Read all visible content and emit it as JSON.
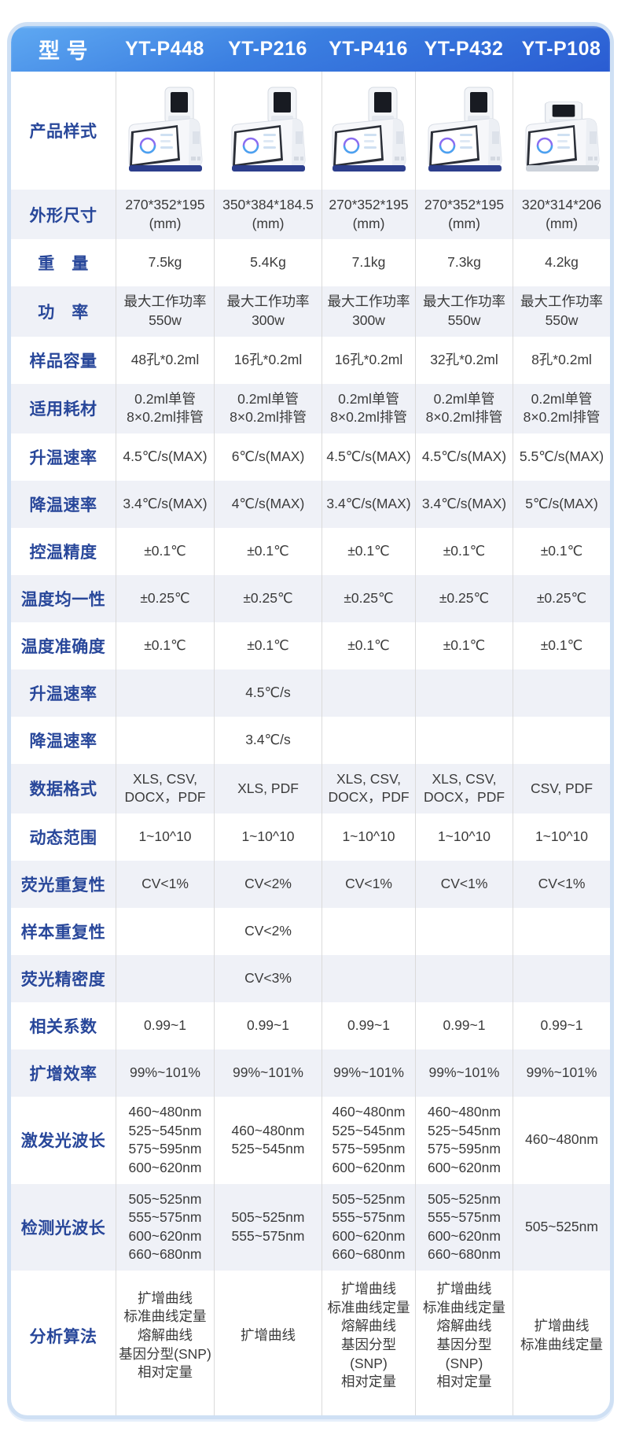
{
  "header": {
    "label": "型 号",
    "models": [
      "YT-P448",
      "YT-P216",
      "YT-P416",
      "YT-P432",
      "YT-P108"
    ]
  },
  "product_row": {
    "label": "产品样式",
    "images": [
      "pcr-thermocycler-photo-yt-p448",
      "pcr-thermocycler-photo-yt-p216",
      "pcr-thermocycler-photo-yt-p416",
      "pcr-thermocycler-photo-yt-p432",
      "pcr-thermocycler-photo-yt-p108"
    ]
  },
  "rows": [
    {
      "label": "外形尺寸",
      "values": [
        "270*352*195\n(mm)",
        "350*384*184.5\n(mm)",
        "270*352*195\n(mm)",
        "270*352*195\n(mm)",
        "320*314*206\n(mm)"
      ]
    },
    {
      "label": "重　量",
      "values": [
        "7.5kg",
        "5.4Kg",
        "7.1kg",
        "7.3kg",
        "4.2kg"
      ]
    },
    {
      "label": "功　率",
      "values": [
        "最大工作功率\n550w",
        "最大工作功率\n300w",
        "最大工作功率\n300w",
        "最大工作功率\n550w",
        "最大工作功率\n550w"
      ]
    },
    {
      "label": "样品容量",
      "values": [
        "48孔*0.2ml",
        "16孔*0.2ml",
        "16孔*0.2ml",
        "32孔*0.2ml",
        "8孔*0.2ml"
      ]
    },
    {
      "label": "适用耗材",
      "values": [
        "0.2ml单管\n8×0.2ml排管",
        "0.2ml单管\n8×0.2ml排管",
        "0.2ml单管\n8×0.2ml排管",
        "0.2ml单管\n8×0.2ml排管",
        "0.2ml单管\n8×0.2ml排管"
      ]
    },
    {
      "label": "升温速率",
      "values": [
        "4.5℃/s(MAX)",
        "6℃/s(MAX)",
        "4.5℃/s(MAX)",
        "4.5℃/s(MAX)",
        "5.5℃/s(MAX)"
      ]
    },
    {
      "label": "降温速率",
      "values": [
        "3.4℃/s(MAX)",
        "4℃/s(MAX)",
        "3.4℃/s(MAX)",
        "3.4℃/s(MAX)",
        "5℃/s(MAX)"
      ]
    },
    {
      "label": "控温精度",
      "values": [
        "±0.1℃",
        "±0.1℃",
        "±0.1℃",
        "±0.1℃",
        "±0.1℃"
      ]
    },
    {
      "label": "温度均一性",
      "values": [
        "±0.25℃",
        "±0.25℃",
        "±0.25℃",
        "±0.25℃",
        "±0.25℃"
      ]
    },
    {
      "label": "温度准确度",
      "values": [
        "±0.1℃",
        "±0.1℃",
        "±0.1℃",
        "±0.1℃",
        "±0.1℃"
      ]
    },
    {
      "label": "升温速率",
      "values": [
        "",
        "4.5℃/s",
        "",
        "",
        ""
      ]
    },
    {
      "label": "降温速率",
      "values": [
        "",
        "3.4℃/s",
        "",
        "",
        ""
      ]
    },
    {
      "label": "数据格式",
      "values": [
        "XLS, CSV,\nDOCX，PDF",
        "XLS, PDF",
        "XLS, CSV,\nDOCX，PDF",
        "XLS, CSV,\nDOCX，PDF",
        "CSV, PDF"
      ]
    },
    {
      "label": "动态范围",
      "values": [
        "1~10^10",
        "1~10^10",
        "1~10^10",
        "1~10^10",
        "1~10^10"
      ]
    },
    {
      "label": "荧光重复性",
      "values": [
        "CV<1%",
        "CV<2%",
        "CV<1%",
        "CV<1%",
        "CV<1%"
      ]
    },
    {
      "label": "样本重复性",
      "values": [
        "",
        "CV<2%",
        "",
        "",
        ""
      ]
    },
    {
      "label": "荧光精密度",
      "values": [
        "",
        "CV<3%",
        "",
        "",
        ""
      ]
    },
    {
      "label": "相关系数",
      "values": [
        "0.99~1",
        "0.99~1",
        "0.99~1",
        "0.99~1",
        "0.99~1"
      ]
    },
    {
      "label": "扩增效率",
      "values": [
        "99%~101%",
        "99%~101%",
        "99%~101%",
        "99%~101%",
        "99%~101%"
      ]
    },
    {
      "label": "激发光波长",
      "values": [
        "460~480nm\n525~545nm\n575~595nm\n600~620nm",
        "460~480nm\n525~545nm",
        "460~480nm\n525~545nm\n575~595nm\n600~620nm",
        "460~480nm\n525~545nm\n575~595nm\n600~620nm",
        "460~480nm"
      ]
    },
    {
      "label": "检测光波长",
      "values": [
        "505~525nm\n555~575nm\n600~620nm\n660~680nm",
        "505~525nm\n555~575nm",
        "505~525nm\n555~575nm\n600~620nm\n660~680nm",
        "505~525nm\n555~575nm\n600~620nm\n660~680nm",
        "505~525nm"
      ]
    },
    {
      "label": "分析算法",
      "values": [
        "扩增曲线\n标准曲线定量\n熔解曲线\n基因分型(SNP)\n相对定量",
        "扩增曲线",
        "扩增曲线\n标准曲线定量\n熔解曲线\n基因分型(SNP)\n相对定量",
        "扩增曲线\n标准曲线定量\n熔解曲线\n基因分型(SNP)\n相对定量",
        "扩增曲线\n标准曲线定量"
      ]
    }
  ],
  "colors": {
    "header_gradient_top": "#5fa9f2",
    "header_gradient_bottom": "#2a5cd2",
    "header_text": "#ffffff",
    "row_label_text": "#28479a",
    "cell_text": "#3b3b3b",
    "alt_row_background": "#eff1f7",
    "card_border": "#cfe0f4",
    "column_divider": "#dadada",
    "device_base_strip": "#2c3e8c"
  }
}
